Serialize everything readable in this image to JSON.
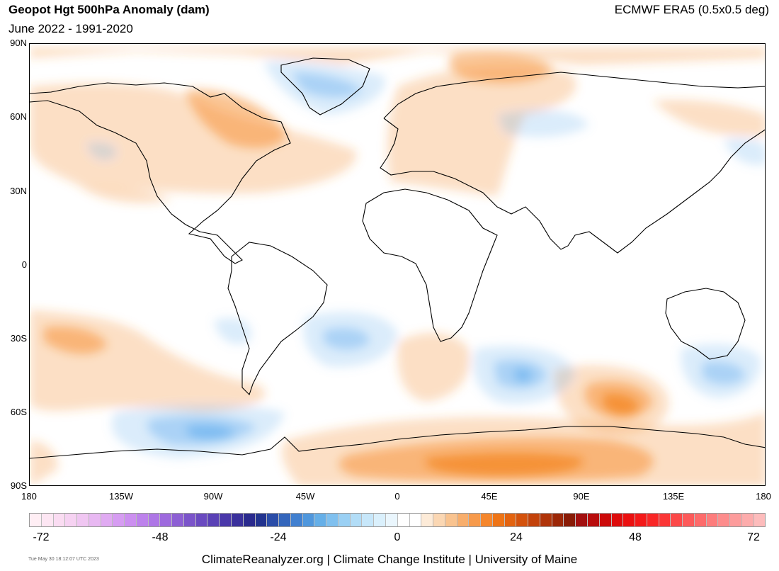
{
  "header": {
    "title": "Geopot Hgt 500hPa Anomaly (dam)",
    "subtitle": "June 2022 - 1991-2020",
    "source": "ECMWF ERA5 (0.5x0.5 deg)"
  },
  "map": {
    "lat_labels": [
      "90N",
      "60N",
      "30N",
      "0",
      "30S",
      "60S",
      "90S"
    ],
    "lon_labels": [
      "180",
      "135W",
      "90W",
      "45W",
      "0",
      "45E",
      "90E",
      "135E",
      "180"
    ],
    "positive_color": "#f58c2a",
    "negative_color": "#6fb4f0",
    "coastline_color": "#000000"
  },
  "colorbar": {
    "labels": [
      "-72",
      "-48",
      "-24",
      "0",
      "24",
      "48",
      "72"
    ],
    "colors": [
      "#ffeef4",
      "#fde6f3",
      "#fadcf2",
      "#f6d2f2",
      "#f0c6f2",
      "#e8b8f2",
      "#e0aaf2",
      "#d69cf2",
      "#cc8ff0",
      "#bd82ec",
      "#ae76e6",
      "#9e6ade",
      "#8d5fd4",
      "#7b54ca",
      "#6a4ac0",
      "#5a41b6",
      "#4a38aa",
      "#3a309c",
      "#2a2a8e",
      "#22338f",
      "#2a4ca8",
      "#3466bc",
      "#4180d0",
      "#4f97dd",
      "#65afe8",
      "#7fc0ef",
      "#9ad0f4",
      "#b2ddf7",
      "#c7e7fa",
      "#daf0fc",
      "#eaf6fd",
      "#ffffff",
      "#ffffff",
      "#fdebd8",
      "#fbd7b3",
      "#f9c38f",
      "#f8ae6c",
      "#f79a4b",
      "#f5862c",
      "#ee7416",
      "#e3630f",
      "#d4520c",
      "#c3420a",
      "#b03409",
      "#9c2707",
      "#891b06",
      "#a30f0f",
      "#b80c0c",
      "#cc0a0a",
      "#dd0b0b",
      "#eb1010",
      "#f41919",
      "#f92626",
      "#fb3636",
      "#fc4848",
      "#fd5a5a",
      "#fd6b6b",
      "#fd7c7c",
      "#fd8c8c",
      "#fd9c9c",
      "#fdacac",
      "#fdbcbc"
    ]
  },
  "footer": {
    "text": "ClimateReanalyzer.org | Climate Change Institute | University of Maine",
    "timestamp": "Tue May 30 18:12:07 UTC 2023"
  }
}
